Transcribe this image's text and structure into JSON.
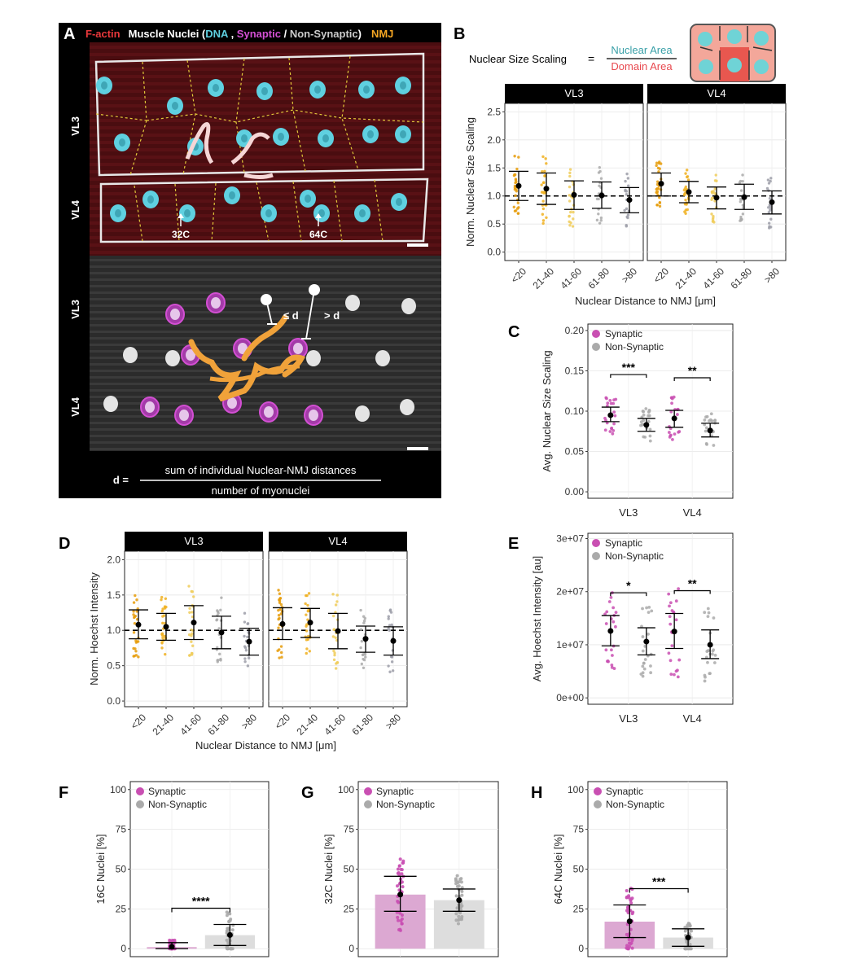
{
  "panel_letters": {
    "a": "A",
    "b": "B",
    "c": "C",
    "d": "D",
    "e": "E",
    "f": "F",
    "g": "G",
    "h": "H"
  },
  "panel_a": {
    "legend": {
      "factin": "F-actin",
      "muscle_nuclei": "Muscle Nuclei (",
      "dna": "DNA",
      "comma": " , ",
      "synaptic": "Synaptic",
      "slash": " / ",
      "non_synaptic": "Non-Synaptic",
      ")": ")",
      "nmj": "NMJ"
    },
    "muscle_labels": {
      "top_vl3": "VL3",
      "top_vl4": "VL4",
      "bottom_vl3": "VL3",
      "bottom_vl4": "VL4"
    },
    "ploidy_labels": {
      "left": "32C",
      "right": "64C"
    },
    "distance_labels": {
      "le": "≤ d",
      "gt": "> d"
    },
    "formula": {
      "lhs": "d =",
      "numerator": "sum of individual Nuclear-NMJ distances",
      "denominator": "number of myonuclei"
    },
    "colors": {
      "factin": "#e8383b",
      "dna": "#5fd0e0",
      "synaptic": "#d34fd3",
      "nmj": "#f5a623",
      "nonsyn": "#d8d8d8"
    }
  },
  "panel_b": {
    "formula": {
      "lhs": "Nuclear Size Scaling",
      "equals": "=",
      "numerator": "Nuclear Area",
      "denominator": "Domain Area"
    },
    "colors": {
      "numerator": "#3aa0a8",
      "denominator": "#e8494f"
    }
  },
  "chart_data": [
    {
      "id": "B",
      "type": "scatter",
      "facets": [
        "VL3",
        "VL4"
      ],
      "categories": [
        "<20",
        "21-40",
        "41-60",
        "61-80",
        ">80"
      ],
      "xlabel": "Nuclear Distance to NMJ [μm]",
      "ylabel": "Norm. Nuclear Size Scaling",
      "ylim": [
        -0.15,
        2.65
      ],
      "yticks": [
        "0.0",
        "0.5",
        "1.0",
        "1.5",
        "2.0",
        "2.5"
      ],
      "yticks_values": [
        0,
        0.5,
        1,
        1.5,
        2,
        2.5
      ],
      "reference_line": 1.0,
      "point_colors": [
        "#e69c0a",
        "#f0b020",
        "#f0cc5a",
        "#aaaaaa",
        "#9c9ea8"
      ],
      "series": [
        {
          "facet": "VL3",
          "means": [
            1.18,
            1.13,
            1.02,
            1.01,
            0.93
          ],
          "lower": [
            0.92,
            0.85,
            0.76,
            0.78,
            0.7
          ],
          "upper": [
            1.44,
            1.41,
            1.27,
            1.25,
            1.15
          ]
        },
        {
          "facet": "VL4",
          "means": [
            1.22,
            1.07,
            0.97,
            0.98,
            0.89
          ],
          "lower": [
            1.0,
            0.88,
            0.77,
            0.76,
            0.68
          ],
          "upper": [
            1.41,
            1.26,
            1.16,
            1.21,
            1.09
          ]
        }
      ]
    },
    {
      "id": "C",
      "type": "scatter",
      "categories": [
        "VL3",
        "VL4"
      ],
      "ylabel": "Avg. Nuclear Size Scaling",
      "ylim": [
        -0.008,
        0.208
      ],
      "yticks": [
        "0.00",
        "0.05",
        "0.10",
        "0.15",
        "0.20"
      ],
      "yticks_values": [
        0,
        0.05,
        0.1,
        0.15,
        0.2
      ],
      "legend": [
        {
          "name": "Synaptic",
          "color": "#c94fb2"
        },
        {
          "name": "Non-Synaptic",
          "color": "#aaaaaa"
        }
      ],
      "legend_position": "top-left",
      "series": [
        {
          "name": "Synaptic",
          "means": [
            0.095,
            0.091
          ],
          "lower": [
            0.087,
            0.08
          ],
          "upper": [
            0.105,
            0.101
          ]
        },
        {
          "name": "Non-Synaptic",
          "means": [
            0.083,
            0.076
          ],
          "lower": [
            0.075,
            0.068
          ],
          "upper": [
            0.091,
            0.085
          ]
        }
      ],
      "significance": [
        "***",
        "**"
      ]
    },
    {
      "id": "D",
      "type": "scatter",
      "facets": [
        "VL3",
        "VL4"
      ],
      "categories": [
        "<20",
        "21-40",
        "41-60",
        "61-80",
        ">80"
      ],
      "xlabel": "Nuclear Distance to NMJ [μm]",
      "ylabel": "Norm. Hoechst Intensity",
      "ylim": [
        -0.08,
        2.12
      ],
      "yticks": [
        "0.0",
        "0.5",
        "1.0",
        "1.5",
        "2.0"
      ],
      "yticks_values": [
        0,
        0.5,
        1,
        1.5,
        2
      ],
      "reference_line": 1.0,
      "point_colors": [
        "#e69c0a",
        "#f0b020",
        "#f0cc5a",
        "#aaaaaa",
        "#9c9ea8"
      ],
      "series": [
        {
          "facet": "VL3",
          "means": [
            1.08,
            1.05,
            1.11,
            0.97,
            0.84
          ],
          "lower": [
            0.88,
            0.86,
            0.87,
            0.74,
            0.65
          ],
          "upper": [
            1.29,
            1.24,
            1.35,
            1.2,
            1.03
          ]
        },
        {
          "facet": "VL4",
          "means": [
            1.09,
            1.11,
            0.99,
            0.88,
            0.85
          ],
          "lower": [
            0.87,
            0.9,
            0.74,
            0.69,
            0.65
          ],
          "upper": [
            1.32,
            1.31,
            1.24,
            1.06,
            1.05
          ]
        }
      ]
    },
    {
      "id": "E",
      "type": "scatter",
      "categories": [
        "VL3",
        "VL4"
      ],
      "ylabel": "Avg. Hoechst Intensity [au]",
      "ylim": [
        -1200000,
        31000000
      ],
      "yticks": [
        "0e+00",
        "1e+07",
        "2e+07",
        "3e+07"
      ],
      "yticks_values": [
        0,
        10000000,
        20000000,
        30000000
      ],
      "legend": [
        {
          "name": "Synaptic",
          "color": "#c94fb2"
        },
        {
          "name": "Non-Synaptic",
          "color": "#aaaaaa"
        }
      ],
      "legend_position": "top-left",
      "series": [
        {
          "name": "Synaptic",
          "means": [
            12600000,
            12500000
          ],
          "lower": [
            9800000,
            9300000
          ],
          "upper": [
            15500000,
            15900000
          ]
        },
        {
          "name": "Non-Synaptic",
          "means": [
            10600000,
            10000000
          ],
          "lower": [
            8100000,
            7400000
          ],
          "upper": [
            13200000,
            12800000
          ]
        }
      ],
      "significance": [
        "*",
        "**"
      ]
    },
    {
      "id": "F",
      "type": "bar",
      "categories": [
        "Synaptic",
        "Non-Synaptic"
      ],
      "ylabel": "16C Nuclei [%]",
      "ylim": [
        -5,
        105
      ],
      "yticks": [
        "0",
        "25",
        "50",
        "75",
        "100"
      ],
      "yticks_values": [
        0,
        25,
        50,
        75,
        100
      ],
      "legend": [
        {
          "name": "Synaptic",
          "color": "#c94fb2"
        },
        {
          "name": "Non-Synaptic",
          "color": "#aaaaaa"
        }
      ],
      "legend_position": "top-left",
      "values": [
        1,
        8.5
      ],
      "means": [
        1.2,
        8.6
      ],
      "lower": [
        0,
        2
      ],
      "upper": [
        3.8,
        15.2
      ],
      "significance": "****"
    },
    {
      "id": "G",
      "type": "bar",
      "categories": [
        "Synaptic",
        "Non-Synaptic"
      ],
      "ylabel": "32C Nuclei [%]",
      "ylim": [
        -5,
        105
      ],
      "yticks": [
        "0",
        "25",
        "50",
        "75",
        "100"
      ],
      "yticks_values": [
        0,
        25,
        50,
        75,
        100
      ],
      "legend": [
        {
          "name": "Synaptic",
          "color": "#c94fb2"
        },
        {
          "name": "Non-Synaptic",
          "color": "#aaaaaa"
        }
      ],
      "legend_position": "top-left",
      "values": [
        34,
        30.5
      ],
      "means": [
        34,
        30.5
      ],
      "lower": [
        23.5,
        23.5
      ],
      "upper": [
        45.5,
        37.5
      ]
    },
    {
      "id": "H",
      "type": "bar",
      "categories": [
        "Synaptic",
        "Non-Synaptic"
      ],
      "ylabel": "64C Nuclei [%]",
      "ylim": [
        -5,
        105
      ],
      "yticks": [
        "0",
        "25",
        "50",
        "75",
        "100"
      ],
      "yticks_values": [
        0,
        25,
        50,
        75,
        100
      ],
      "legend": [
        {
          "name": "Synaptic",
          "color": "#c94fb2"
        },
        {
          "name": "Non-Synaptic",
          "color": "#aaaaaa"
        }
      ],
      "legend_position": "top-left",
      "values": [
        17,
        7
      ],
      "means": [
        17.2,
        7
      ],
      "lower": [
        7,
        1.5
      ],
      "upper": [
        27.5,
        12.5
      ],
      "significance": "***"
    }
  ]
}
